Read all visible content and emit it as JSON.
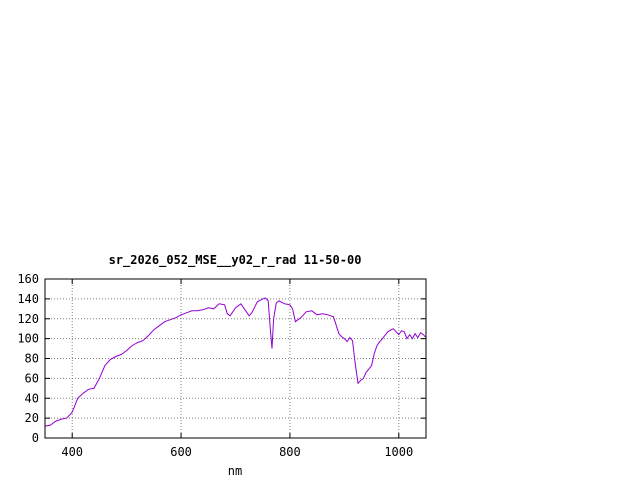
{
  "chart_data": {
    "type": "line",
    "title": "sr_2026_052_MSE__y02_r_rad 11-50-00",
    "xlabel": "nm",
    "ylabel": "",
    "xlim": [
      350,
      1050
    ],
    "ylim": [
      0,
      160
    ],
    "xticks": [
      400,
      600,
      800,
      1000
    ],
    "yticks": [
      0,
      20,
      40,
      60,
      80,
      100,
      120,
      140,
      160
    ],
    "grid": true,
    "line_color": "#9400d3",
    "series": [
      {
        "x": [
          350,
          360,
          370,
          380,
          390,
          400,
          410,
          420,
          430,
          440,
          450,
          460,
          470,
          480,
          490,
          500,
          510,
          520,
          530,
          540,
          550,
          560,
          570,
          580,
          590,
          600,
          610,
          620,
          630,
          640,
          650,
          660,
          670,
          680,
          685,
          690,
          700,
          710,
          720,
          725,
          730,
          740,
          750,
          755,
          760,
          764,
          767,
          770,
          775,
          780,
          790,
          800,
          805,
          810,
          815,
          820,
          830,
          840,
          850,
          860,
          870,
          880,
          890,
          895,
          900,
          905,
          910,
          915,
          920,
          925,
          930,
          935,
          940,
          950,
          955,
          960,
          965,
          970,
          980,
          990,
          1000,
          1005,
          1010,
          1015,
          1020,
          1025,
          1030,
          1035,
          1040,
          1045,
          1050
        ],
        "y": [
          12,
          13,
          17,
          19,
          20,
          26,
          40,
          45,
          49,
          50,
          60,
          73,
          79,
          82,
          84,
          88,
          93,
          96,
          98,
          103,
          109,
          113,
          117,
          119,
          121,
          124,
          126,
          128,
          128,
          129,
          131,
          130,
          135,
          134,
          125,
          123,
          131,
          135,
          127,
          123,
          126,
          137,
          140,
          141,
          138,
          110,
          90,
          120,
          136,
          138,
          135,
          134,
          130,
          117,
          119,
          121,
          127,
          128,
          124,
          125,
          124,
          122,
          105,
          102,
          100,
          97,
          101,
          98,
          75,
          55,
          58,
          60,
          66,
          73,
          85,
          93,
          97,
          100,
          107,
          110,
          104,
          108,
          107,
          100,
          104,
          100,
          105,
          101,
          106,
          104,
          101
        ]
      }
    ]
  }
}
